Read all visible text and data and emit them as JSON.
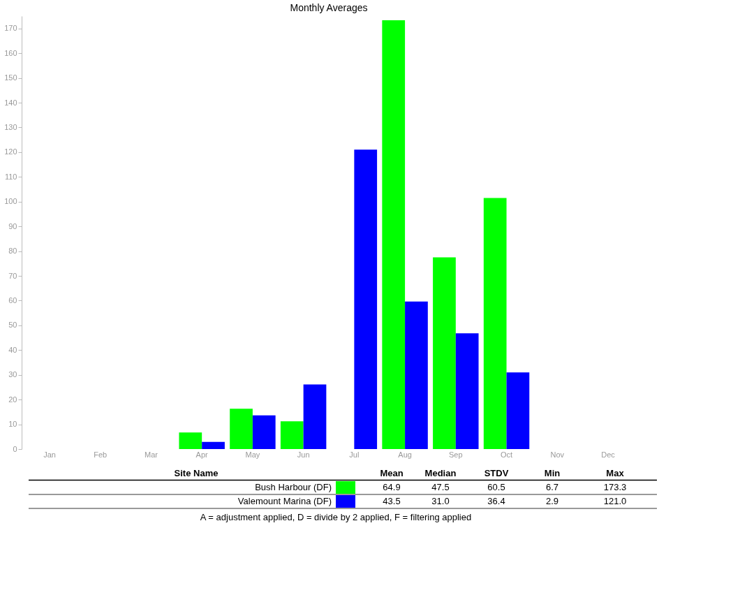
{
  "chart_data": {
    "type": "bar",
    "title": "Monthly Averages",
    "categories": [
      "Jan",
      "Feb",
      "Mar",
      "Apr",
      "May",
      "Jun",
      "Jul",
      "Aug",
      "Sep",
      "Oct",
      "Nov",
      "Dec"
    ],
    "series": [
      {
        "name": "Bush Harbour  (DF)",
        "color": "#00ff00",
        "values": [
          null,
          null,
          null,
          6.7,
          16.3,
          11.2,
          null,
          173.3,
          77.5,
          101.5,
          null,
          null
        ]
      },
      {
        "name": "Valemount Marina  (DF)",
        "color": "#0000ff",
        "values": [
          null,
          null,
          null,
          2.9,
          13.6,
          26.1,
          121.0,
          59.6,
          46.8,
          31.0,
          null,
          null
        ]
      }
    ],
    "ylim": [
      0,
      175
    ],
    "yticks": [
      0,
      10,
      20,
      30,
      40,
      50,
      60,
      70,
      80,
      90,
      100,
      110,
      120,
      130,
      140,
      150,
      160,
      170
    ],
    "grid": false,
    "legend": "bottom",
    "annotations": [
      "Site Name",
      "Mean",
      "Median",
      "STDV",
      "Min",
      "Max",
      "64.9",
      "47.5",
      "60.5",
      "6.7",
      "173.3",
      "43.5",
      "31.0",
      "36.4",
      "2.9",
      "121.0",
      "A = adjustment applied, D = divide by 2 applied, F = filtering applied"
    ]
  }
}
